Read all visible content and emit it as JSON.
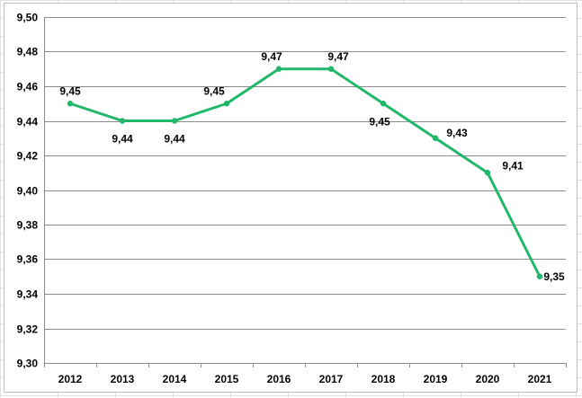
{
  "chart_data": {
    "type": "line",
    "title": "",
    "xlabel": "",
    "ylabel": "",
    "categories": [
      "2012",
      "2013",
      "2014",
      "2015",
      "2016",
      "2017",
      "2018",
      "2019",
      "2020",
      "2021"
    ],
    "series": [
      {
        "values": [
          9.45,
          9.44,
          9.44,
          9.45,
          9.47,
          9.47,
          9.45,
          9.43,
          9.41,
          9.35
        ],
        "data_labels": [
          "9,45",
          "9,44",
          "9,44",
          "9,45",
          "9,47",
          "9,47",
          "9,45",
          "9,43",
          "9,41",
          "9,35"
        ],
        "color": "#21b86b"
      }
    ],
    "y_ticks": [
      "9,30",
      "9,32",
      "9,34",
      "9,36",
      "9,38",
      "9,40",
      "9,42",
      "9,44",
      "9,46",
      "9,48",
      "9,50"
    ],
    "ylim": [
      9.3,
      9.5
    ],
    "grid": "horizontal",
    "legend": "none"
  }
}
